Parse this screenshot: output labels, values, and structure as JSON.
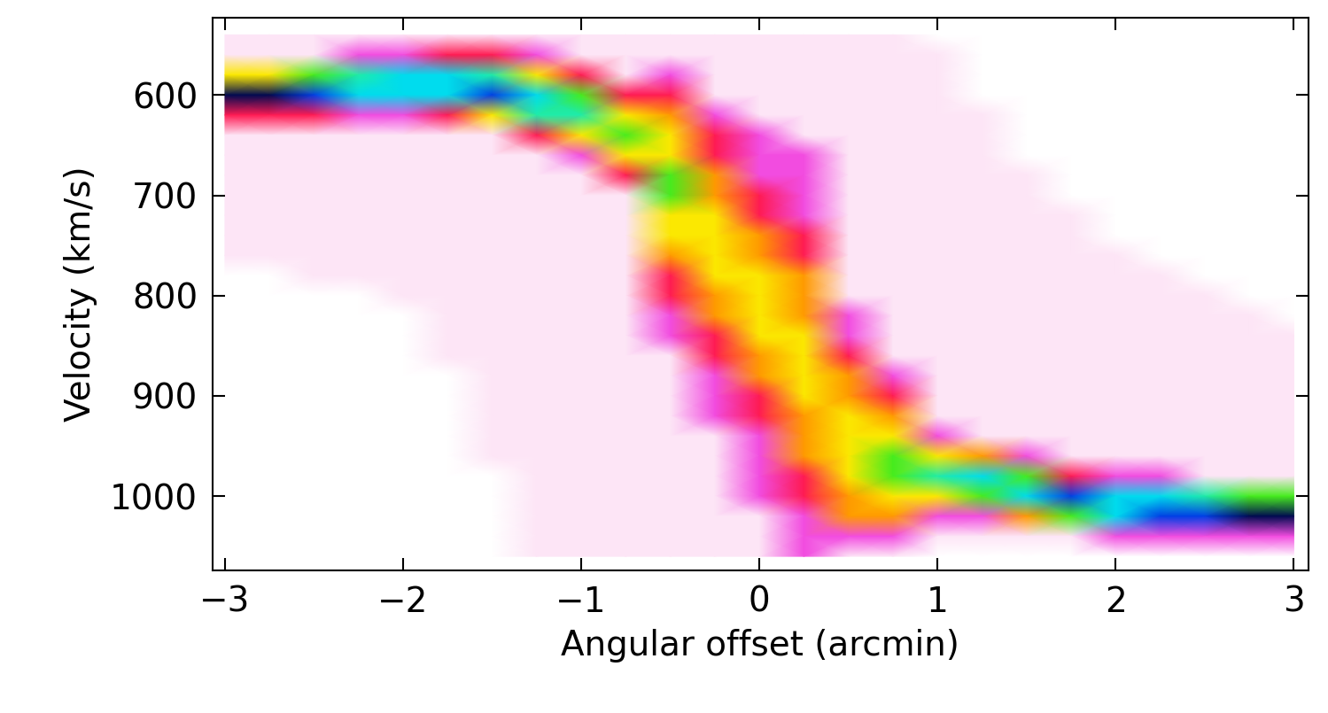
{
  "chart_data": {
    "type": "heatmap",
    "xlabel": "Angular offset (arcmin)",
    "ylabel": "Velocity (km/s)",
    "xlim": [
      -3.07,
      3.08
    ],
    "ylim": [
      1074,
      523
    ],
    "xticks": [
      {
        "value": -3,
        "label": "−3"
      },
      {
        "value": -2,
        "label": "−2"
      },
      {
        "value": -1,
        "label": "−1"
      },
      0,
      1,
      2,
      3
    ],
    "yticks": [
      600,
      700,
      800,
      900,
      1000
    ],
    "zlim": [
      0,
      10
    ],
    "x": [
      -3.0,
      -2.75,
      -2.5,
      -2.25,
      -2.0,
      -1.75,
      -1.5,
      -1.25,
      -1.0,
      -0.75,
      -0.5,
      -0.25,
      0.0,
      0.25,
      0.5,
      0.75,
      1.0,
      1.25,
      1.5,
      1.75,
      2.0,
      2.25,
      2.5,
      2.75,
      3.0
    ],
    "y": [
      540,
      560,
      580,
      600,
      620,
      640,
      660,
      680,
      700,
      720,
      740,
      760,
      780,
      800,
      820,
      840,
      860,
      880,
      900,
      920,
      940,
      960,
      980,
      1000,
      1020,
      1040,
      1060
    ],
    "cells": [
      [
        1,
        1,
        5,
        10,
        3,
        1,
        1,
        1,
        1,
        1,
        1,
        1,
        0,
        0,
        0,
        0,
        0,
        0,
        0,
        0,
        0,
        0,
        0,
        0,
        0,
        0,
        0
      ],
      [
        1,
        1,
        5,
        10,
        3,
        1,
        1,
        1,
        1,
        1,
        1,
        1,
        0,
        0,
        0,
        0,
        0,
        0,
        0,
        0,
        0,
        0,
        0,
        0,
        0,
        0,
        0
      ],
      [
        1,
        1,
        6,
        9,
        3,
        1,
        1,
        1,
        1,
        1,
        1,
        1,
        1,
        0,
        0,
        0,
        0,
        0,
        0,
        0,
        0,
        0,
        0,
        0,
        0,
        0,
        0
      ],
      [
        1,
        2,
        7,
        8,
        2,
        1,
        1,
        1,
        1,
        1,
        1,
        1,
        1,
        0,
        0,
        0,
        0,
        0,
        0,
        0,
        0,
        0,
        0,
        0,
        0,
        0,
        0
      ],
      [
        1,
        2,
        8,
        8,
        2,
        1,
        1,
        1,
        1,
        1,
        1,
        1,
        1,
        1,
        0,
        0,
        0,
        0,
        0,
        0,
        0,
        0,
        0,
        0,
        0,
        0,
        0
      ],
      [
        1,
        3,
        8,
        8,
        3,
        1,
        1,
        1,
        1,
        1,
        1,
        1,
        1,
        1,
        1,
        1,
        1,
        0,
        0,
        0,
        0,
        0,
        0,
        0,
        0,
        0,
        0
      ],
      [
        1,
        3,
        7,
        9,
        5,
        1,
        1,
        1,
        1,
        1,
        1,
        1,
        1,
        1,
        1,
        1,
        1,
        1,
        1,
        1,
        1,
        1,
        0,
        0,
        0,
        0,
        0
      ],
      [
        1,
        2,
        5,
        8,
        7,
        3,
        1,
        1,
        1,
        1,
        1,
        1,
        1,
        1,
        1,
        1,
        1,
        1,
        1,
        1,
        1,
        1,
        1,
        1,
        1,
        1,
        1
      ],
      [
        1,
        1,
        3,
        6,
        7,
        5,
        2,
        1,
        1,
        1,
        1,
        1,
        1,
        1,
        1,
        1,
        1,
        1,
        1,
        1,
        1,
        1,
        1,
        1,
        1,
        1,
        1
      ],
      [
        1,
        1,
        1,
        3,
        5,
        6,
        5,
        3,
        1,
        1,
        1,
        1,
        1,
        1,
        1,
        1,
        1,
        1,
        1,
        1,
        1,
        1,
        1,
        1,
        1,
        1,
        1
      ],
      [
        1,
        1,
        2,
        3,
        4,
        5,
        5,
        6,
        6,
        5,
        5,
        4,
        3,
        3,
        2,
        2,
        1,
        1,
        1,
        1,
        1,
        1,
        1,
        1,
        1,
        1,
        1
      ],
      [
        1,
        1,
        1,
        1,
        2,
        3,
        3,
        4,
        4,
        5,
        5,
        5,
        5,
        4,
        4,
        3,
        3,
        2,
        2,
        2,
        1,
        1,
        1,
        1,
        1,
        1,
        1
      ],
      [
        1,
        1,
        1,
        1,
        1,
        2,
        2,
        2,
        3,
        3,
        4,
        4,
        5,
        5,
        5,
        5,
        4,
        4,
        3,
        3,
        2,
        2,
        2,
        2,
        1,
        1,
        1
      ],
      [
        1,
        1,
        1,
        1,
        1,
        1,
        2,
        2,
        2,
        2,
        3,
        3,
        4,
        4,
        4,
        5,
        5,
        5,
        5,
        4,
        4,
        4,
        3,
        3,
        2,
        2,
        2
      ],
      [
        1,
        1,
        1,
        1,
        1,
        1,
        1,
        1,
        1,
        1,
        1,
        1,
        1,
        1,
        2,
        2,
        3,
        4,
        4,
        5,
        5,
        5,
        5,
        4,
        4,
        2,
        1
      ],
      [
        1,
        1,
        1,
        1,
        1,
        1,
        1,
        1,
        1,
        1,
        1,
        1,
        1,
        1,
        1,
        1,
        1,
        2,
        3,
        4,
        5,
        6,
        6,
        5,
        4,
        2,
        1
      ],
      [
        0,
        1,
        1,
        1,
        1,
        1,
        1,
        1,
        1,
        1,
        1,
        1,
        1,
        1,
        1,
        1,
        1,
        1,
        1,
        1,
        2,
        5,
        7,
        5,
        2,
        1,
        0
      ],
      [
        0,
        0,
        0,
        0,
        1,
        1,
        1,
        1,
        1,
        1,
        1,
        1,
        1,
        1,
        1,
        1,
        1,
        1,
        1,
        1,
        1,
        4,
        8,
        6,
        2,
        1,
        0
      ],
      [
        0,
        0,
        0,
        0,
        0,
        0,
        0,
        1,
        1,
        1,
        1,
        1,
        1,
        1,
        1,
        1,
        1,
        1,
        1,
        1,
        1,
        2,
        6,
        8,
        4,
        1,
        0
      ],
      [
        0,
        0,
        0,
        0,
        0,
        0,
        0,
        0,
        0,
        1,
        1,
        1,
        1,
        1,
        1,
        1,
        1,
        1,
        1,
        1,
        1,
        1,
        3,
        9,
        6,
        1,
        0
      ],
      [
        0,
        0,
        0,
        0,
        0,
        0,
        0,
        0,
        0,
        0,
        0,
        1,
        1,
        1,
        1,
        1,
        1,
        1,
        1,
        1,
        1,
        1,
        2,
        8,
        8,
        2,
        0
      ],
      [
        0,
        0,
        0,
        0,
        0,
        0,
        0,
        0,
        0,
        0,
        0,
        0,
        1,
        1,
        1,
        1,
        1,
        1,
        1,
        1,
        1,
        1,
        2,
        8,
        9,
        2,
        0
      ],
      [
        0,
        0,
        0,
        0,
        0,
        0,
        0,
        0,
        0,
        0,
        0,
        0,
        0,
        1,
        1,
        1,
        1,
        1,
        1,
        1,
        1,
        1,
        1,
        7,
        9,
        2,
        0
      ],
      [
        0,
        0,
        0,
        0,
        0,
        0,
        0,
        0,
        0,
        0,
        0,
        0,
        0,
        0,
        1,
        1,
        1,
        1,
        1,
        1,
        1,
        1,
        1,
        6,
        10,
        2,
        0
      ],
      [
        0,
        0,
        0,
        0,
        0,
        0,
        0,
        0,
        0,
        0,
        0,
        0,
        0,
        0,
        0,
        1,
        1,
        1,
        1,
        1,
        1,
        1,
        1,
        6,
        10,
        2,
        0
      ]
    ]
  }
}
